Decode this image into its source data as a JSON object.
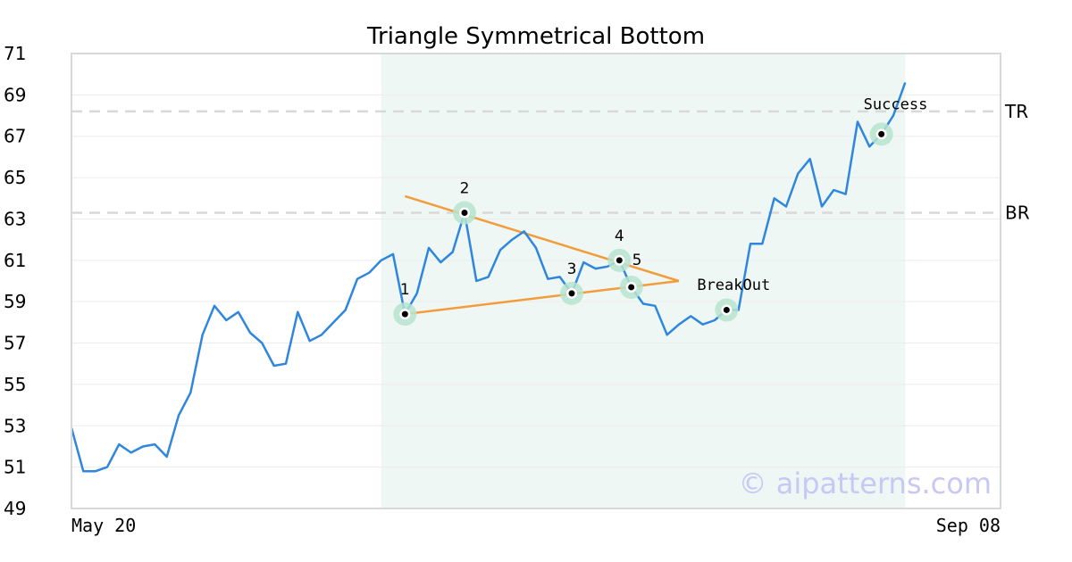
{
  "colors": {
    "price_line": "#2e86de",
    "trend_lines": "#f39c3c",
    "highlight_band": "#eef7f3",
    "pivot_halo": "#b7e4cf",
    "level_lines": "#d9d9d9",
    "grid": "#ececec",
    "frame": "#d8d8d8"
  },
  "chart_data": {
    "type": "line",
    "title": "Triangle Symmetrical Bottom",
    "ylim": [
      49,
      71
    ],
    "yticks": [
      49,
      51,
      53,
      55,
      57,
      59,
      61,
      63,
      65,
      67,
      69,
      71
    ],
    "x_range": [
      0,
      78
    ],
    "x_tick_labels": [
      {
        "x": 0,
        "label": "May 20"
      },
      {
        "x": 78,
        "label": "Sep 08"
      }
    ],
    "grid": true,
    "highlight_range": [
      26,
      70
    ],
    "series": [
      {
        "values": [
          {
            "x": 0,
            "y": 52.9
          },
          {
            "x": 1,
            "y": 50.8
          },
          {
            "x": 2,
            "y": 50.8
          },
          {
            "x": 3,
            "y": 51.0
          },
          {
            "x": 4,
            "y": 52.1
          },
          {
            "x": 5,
            "y": 51.7
          },
          {
            "x": 6,
            "y": 52.0
          },
          {
            "x": 7,
            "y": 52.1
          },
          {
            "x": 8,
            "y": 51.5
          },
          {
            "x": 9,
            "y": 53.5
          },
          {
            "x": 10,
            "y": 54.6
          },
          {
            "x": 11,
            "y": 57.4
          },
          {
            "x": 12,
            "y": 58.8
          },
          {
            "x": 13,
            "y": 58.1
          },
          {
            "x": 14,
            "y": 58.5
          },
          {
            "x": 15,
            "y": 57.5
          },
          {
            "x": 16,
            "y": 57.0
          },
          {
            "x": 17,
            "y": 55.9
          },
          {
            "x": 18,
            "y": 56.0
          },
          {
            "x": 19,
            "y": 58.5
          },
          {
            "x": 20,
            "y": 57.1
          },
          {
            "x": 21,
            "y": 57.4
          },
          {
            "x": 22,
            "y": 58.0
          },
          {
            "x": 23,
            "y": 58.6
          },
          {
            "x": 24,
            "y": 60.1
          },
          {
            "x": 25,
            "y": 60.4
          },
          {
            "x": 26,
            "y": 61.0
          },
          {
            "x": 27,
            "y": 61.3
          },
          {
            "x": 28,
            "y": 58.4
          },
          {
            "x": 29,
            "y": 59.4
          },
          {
            "x": 30,
            "y": 61.6
          },
          {
            "x": 31,
            "y": 60.9
          },
          {
            "x": 32,
            "y": 61.4
          },
          {
            "x": 33,
            "y": 63.3
          },
          {
            "x": 34,
            "y": 60.0
          },
          {
            "x": 35,
            "y": 60.2
          },
          {
            "x": 36,
            "y": 61.5
          },
          {
            "x": 37,
            "y": 62.0
          },
          {
            "x": 38,
            "y": 62.4
          },
          {
            "x": 39,
            "y": 61.6
          },
          {
            "x": 40,
            "y": 60.1
          },
          {
            "x": 41,
            "y": 60.2
          },
          {
            "x": 42,
            "y": 59.4
          },
          {
            "x": 43,
            "y": 60.9
          },
          {
            "x": 44,
            "y": 60.6
          },
          {
            "x": 45,
            "y": 60.7
          },
          {
            "x": 46,
            "y": 61.0
          },
          {
            "x": 47,
            "y": 59.7
          },
          {
            "x": 48,
            "y": 58.9
          },
          {
            "x": 49,
            "y": 58.8
          },
          {
            "x": 50,
            "y": 57.4
          },
          {
            "x": 51,
            "y": 57.9
          },
          {
            "x": 52,
            "y": 58.3
          },
          {
            "x": 53,
            "y": 57.9
          },
          {
            "x": 54,
            "y": 58.1
          },
          {
            "x": 55,
            "y": 58.6
          },
          {
            "x": 56,
            "y": 58.6
          },
          {
            "x": 57,
            "y": 61.8
          },
          {
            "x": 58,
            "y": 61.8
          },
          {
            "x": 59,
            "y": 64.0
          },
          {
            "x": 60,
            "y": 63.6
          },
          {
            "x": 61,
            "y": 65.2
          },
          {
            "x": 62,
            "y": 65.9
          },
          {
            "x": 63,
            "y": 63.6
          },
          {
            "x": 64,
            "y": 64.4
          },
          {
            "x": 65,
            "y": 64.2
          },
          {
            "x": 66,
            "y": 67.7
          },
          {
            "x": 67,
            "y": 66.5
          },
          {
            "x": 68,
            "y": 67.1
          },
          {
            "x": 69,
            "y": 68.0
          },
          {
            "x": 70,
            "y": 69.6
          }
        ]
      }
    ],
    "levels": [
      {
        "label": "TR",
        "y": 68.2
      },
      {
        "label": "BR",
        "y": 63.3
      }
    ],
    "trend_lines": [
      {
        "from": {
          "x": 28,
          "y": 64.1
        },
        "to": {
          "x": 51,
          "y": 60.0
        }
      },
      {
        "from": {
          "x": 28,
          "y": 58.4
        },
        "to": {
          "x": 51,
          "y": 60.0
        }
      }
    ],
    "pivots": [
      {
        "label": "1",
        "x": 28,
        "y": 58.4,
        "label_pos": "above"
      },
      {
        "label": "2",
        "x": 33,
        "y": 63.3,
        "label_pos": "above"
      },
      {
        "label": "3",
        "x": 42,
        "y": 59.4,
        "label_pos": "above"
      },
      {
        "label": "4",
        "x": 46,
        "y": 61.0,
        "label_pos": "above"
      },
      {
        "label": "5",
        "x": 47,
        "y": 59.7,
        "label_pos": "above-right"
      },
      {
        "label": "",
        "x": 55,
        "y": 58.6,
        "label_pos": "none"
      },
      {
        "label": "",
        "x": 68,
        "y": 67.1,
        "label_pos": "none"
      }
    ],
    "annotations": [
      {
        "text": "BreakOut",
        "x": 52,
        "y": 60.0
      },
      {
        "text": "Success",
        "x": 66.5,
        "y": 68.3
      }
    ],
    "watermark": "© aipatterns.com"
  }
}
